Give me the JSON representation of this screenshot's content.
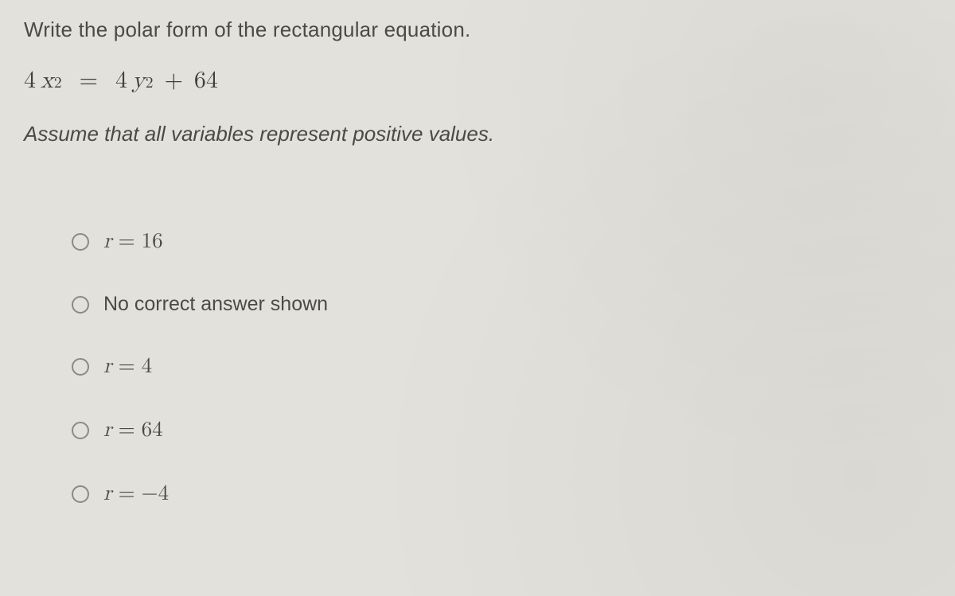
{
  "colors": {
    "background": "#e3e1db",
    "text": "#4a4a47",
    "math_text": "#3f3f3d",
    "radio_border": "#8a8a85"
  },
  "typography": {
    "body_font": "Helvetica Neue, Arial, sans-serif",
    "math_font": "Latin Modern Math, STIX Two Math, Cambria Math, Georgia, serif",
    "prompt_fontsize_pt": 20,
    "equation_fontsize_pt": 22,
    "option_fontsize_pt": 20
  },
  "prompt": "Write the polar form of the rectangular equation.",
  "equation": {
    "lhs_coef": "4",
    "lhs_var": "x",
    "lhs_exp": "2",
    "eq": "=",
    "rhs_coef": "4",
    "rhs_var": "y",
    "rhs_exp": "2",
    "plus": "+",
    "rhs_const": "64"
  },
  "assume": "Assume that all variables represent positive values.",
  "options": [
    {
      "var": "r",
      "eq": "=",
      "value": "16",
      "is_math": true
    },
    {
      "text": "No correct answer shown",
      "is_math": false
    },
    {
      "var": "r",
      "eq": "=",
      "value": "4",
      "is_math": true
    },
    {
      "var": "r",
      "eq": "=",
      "value": "64",
      "is_math": true
    },
    {
      "var": "r",
      "eq": "=",
      "value": "−4",
      "is_math": true
    }
  ]
}
